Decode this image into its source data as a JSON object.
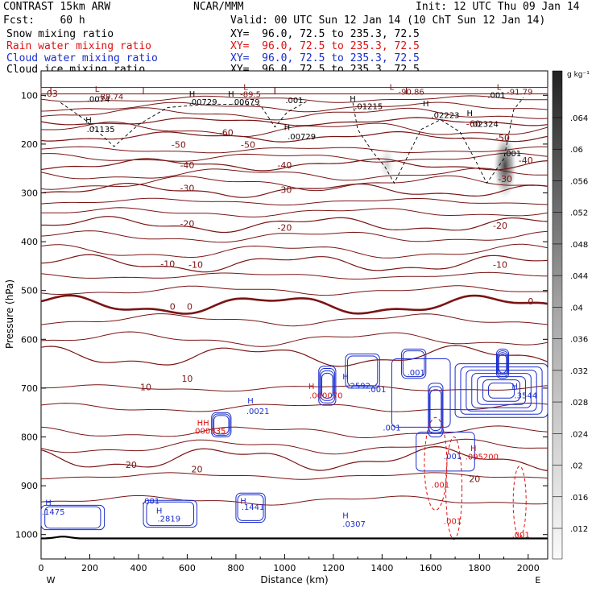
{
  "header": {
    "model": "CONTRAST 15km ARW",
    "org": "NCAR/MMM",
    "init": "Init: 12 UTC Thu 09 Jan 14",
    "fcst": "Fcst:    60 h",
    "valid": "Valid: 00 UTC Sun 12 Jan 14 (10 ChT Sun 12 Jan 14)"
  },
  "fields": [
    {
      "label": "Snow mixing ratio",
      "xy": "XY=  96.0, 72.5 to 235.3, 72.5",
      "color": "#000000"
    },
    {
      "label": "Rain water mixing ratio",
      "xy": "XY=  96.0, 72.5 to 235.3, 72.5",
      "color": "#dd1111"
    },
    {
      "label": "Cloud water mixing ratio",
      "xy": "XY=  96.0, 72.5 to 235.3, 72.5",
      "color": "#1a2ccc"
    },
    {
      "label": "Cloud ice mixing ratio",
      "xy": "XY=  96.0, 72.5 to 235.3, 72.5",
      "color": "#000000"
    }
  ],
  "colors": {
    "temp": "#7a1414",
    "rain": "#dd1111",
    "cloud": "#1a2ccc",
    "ice": "#000000"
  },
  "chart_data": {
    "type": "heatmap",
    "xlabel": "Distance (km)",
    "ylabel": "Pressure (hPa)",
    "xlim": [
      0,
      2080
    ],
    "ylim": [
      1050,
      50
    ],
    "x_ticks": [
      0,
      200,
      400,
      600,
      800,
      1000,
      1200,
      1400,
      1600,
      1800,
      2000
    ],
    "y_ticks": [
      100,
      200,
      300,
      400,
      500,
      600,
      700,
      800,
      900,
      1000
    ],
    "x_end_labels": {
      "left": "W",
      "right": "E"
    },
    "colorbar": {
      "unit": "g kg⁻¹",
      "ticks": [
        ".064",
        ".06",
        ".056",
        ".052",
        ".048",
        ".044",
        ".04",
        ".036",
        ".032",
        ".028",
        ".024",
        ".02",
        ".016",
        ".012"
      ]
    },
    "temperature_contours": [
      {
        "value": "-60",
        "p": 154,
        "label_x": 770
      },
      {
        "value": "-50",
        "p": 185,
        "label_x": 610
      },
      {
        "value": "-40",
        "p": 242,
        "label_x": 1070
      },
      {
        "value": "-30",
        "p": 295,
        "label_x": 1000
      },
      {
        "value": "-20",
        "p": 365,
        "label_x": 1150
      },
      {
        "value": "-10",
        "p": 445,
        "label_x": 600
      },
      {
        "value": "0",
        "p": 530,
        "label_x": 610
      },
      {
        "value": "10",
        "p": 635,
        "label_x": 600
      },
      {
        "value": "20",
        "p": 845,
        "label_x": 640
      }
    ],
    "temperature_labels": [
      {
        "text": ".03",
        "x": 40,
        "p": 96
      },
      {
        "text": "-60",
        "x": 760,
        "p": 176
      },
      {
        "text": "-50",
        "x": 565,
        "p": 201
      },
      {
        "text": "-50",
        "x": 850,
        "p": 201
      },
      {
        "text": "-40",
        "x": 600,
        "p": 243
      },
      {
        "text": "-40",
        "x": 1000,
        "p": 243
      },
      {
        "text": "-30",
        "x": 600,
        "p": 290
      },
      {
        "text": "-30",
        "x": 1000,
        "p": 293
      },
      {
        "text": "-20",
        "x": 600,
        "p": 363
      },
      {
        "text": "-20",
        "x": 1000,
        "p": 371
      },
      {
        "text": "-20",
        "x": 1885,
        "p": 367
      },
      {
        "text": "-10",
        "x": 520,
        "p": 445
      },
      {
        "text": "-10",
        "x": 635,
        "p": 447
      },
      {
        "text": "-10",
        "x": 1885,
        "p": 447
      },
      {
        "text": "0",
        "x": 540,
        "p": 533
      },
      {
        "text": "0",
        "x": 610,
        "p": 533
      },
      {
        "text": "0",
        "x": 2010,
        "p": 522
      },
      {
        "text": "10",
        "x": 430,
        "p": 698
      },
      {
        "text": "10",
        "x": 600,
        "p": 680
      },
      {
        "text": "20",
        "x": 370,
        "p": 857
      },
      {
        "text": "20",
        "x": 640,
        "p": 866
      },
      {
        "text": "20",
        "x": 1780,
        "p": 886
      },
      {
        "text": "-60",
        "x": 1775,
        "p": 158
      },
      {
        "text": "-50",
        "x": 1895,
        "p": 187
      },
      {
        "text": "-40",
        "x": 1990,
        "p": 233
      },
      {
        "text": "-30",
        "x": 1905,
        "p": 271
      }
    ],
    "markers": [
      {
        "text": "L",
        "x": 230,
        "p": 86,
        "color": "#7a1414"
      },
      {
        "text": "L",
        "x": 840,
        "p": 82,
        "color": "#7a1414"
      },
      {
        "text": "L",
        "x": 1440,
        "p": 82,
        "color": "#7a1414"
      },
      {
        "text": "L",
        "x": 1880,
        "p": 82,
        "color": "#7a1414"
      },
      {
        "text": "H",
        "x": 620,
        "p": 96,
        "color": "#000000"
      },
      {
        "text": "H",
        "x": 780,
        "p": 96,
        "color": "#000000"
      },
      {
        "text": "H",
        "x": 1280,
        "p": 106,
        "color": "#000000"
      },
      {
        "text": "H",
        "x": 1580,
        "p": 116,
        "color": "#000000"
      },
      {
        "text": "H",
        "x": 1760,
        "p": 136,
        "color": "#000000"
      },
      {
        "text": "H",
        "x": 195,
        "p": 150,
        "color": "#000000"
      },
      {
        "text": "H",
        "x": 1010,
        "p": 165,
        "color": "#000000"
      },
      {
        "text": "H",
        "x": 1250,
        "p": 675,
        "color": "#1a2ccc"
      },
      {
        "text": "H",
        "x": 1110,
        "p": 695,
        "color": "#dd1111"
      },
      {
        "text": "H",
        "x": 1945,
        "p": 695,
        "color": "#1a2ccc"
      },
      {
        "text": "H",
        "x": 860,
        "p": 725,
        "color": "#1a2ccc"
      },
      {
        "text": "HH",
        "x": 665,
        "p": 770,
        "color": "#dd1111"
      },
      {
        "text": "H",
        "x": 1775,
        "p": 822,
        "color": "#dd1111"
      },
      {
        "text": "H",
        "x": 30,
        "p": 934,
        "color": "#1a2ccc"
      },
      {
        "text": "H",
        "x": 485,
        "p": 950,
        "color": "#1a2ccc"
      },
      {
        "text": "H",
        "x": 830,
        "p": 930,
        "color": "#1a2ccc"
      },
      {
        "text": "H",
        "x": 1250,
        "p": 960,
        "color": "#1a2ccc"
      }
    ],
    "value_labels": [
      {
        "text": ".0074",
        "x": 235,
        "p": 107,
        "color": "#000000"
      },
      {
        "text": "-89.74",
        "x": 285,
        "p": 102,
        "color": "#7a1414"
      },
      {
        "text": "-89.5",
        "x": 860,
        "p": 97,
        "color": "#7a1414"
      },
      {
        "text": ".00729",
        "x": 665,
        "p": 113,
        "color": "#000000"
      },
      {
        "text": ".00679",
        "x": 840,
        "p": 113,
        "color": "#000000"
      },
      {
        "text": ".001",
        "x": 1040,
        "p": 109,
        "color": "#000000"
      },
      {
        "text": "-90.86",
        "x": 1520,
        "p": 92,
        "color": "#7a1414"
      },
      {
        "text": ".001",
        "x": 1870,
        "p": 99,
        "color": "#000000"
      },
      {
        "text": "-91.79",
        "x": 1965,
        "p": 92,
        "color": "#7a1414"
      },
      {
        "text": ".01215",
        "x": 1345,
        "p": 122,
        "color": "#000000"
      },
      {
        "text": ".02223",
        "x": 1660,
        "p": 140,
        "color": "#000000"
      },
      {
        "text": ".02324",
        "x": 1820,
        "p": 158,
        "color": "#000000"
      },
      {
        "text": ".01135",
        "x": 245,
        "p": 169,
        "color": "#000000"
      },
      {
        "text": ".00729",
        "x": 1070,
        "p": 184,
        "color": "#000000"
      },
      {
        "text": ".001",
        "x": 1935,
        "p": 218,
        "color": "#000000"
      },
      {
        "text": ".2592",
        "x": 1305,
        "p": 694,
        "color": "#1a2ccc"
      },
      {
        "text": ".001",
        "x": 1540,
        "p": 667,
        "color": "#1a2ccc"
      },
      {
        "text": ".001",
        "x": 1380,
        "p": 702,
        "color": "#1a2ccc"
      },
      {
        "text": ".000070",
        "x": 1170,
        "p": 714,
        "color": "#dd1111"
      },
      {
        "text": ".3544",
        "x": 1990,
        "p": 714,
        "color": "#1a2ccc"
      },
      {
        "text": ".0021",
        "x": 890,
        "p": 746,
        "color": "#1a2ccc"
      },
      {
        "text": ".000335",
        "x": 690,
        "p": 787,
        "color": "#dd1111"
      },
      {
        "text": ".001",
        "x": 1440,
        "p": 780,
        "color": "#1a2ccc"
      },
      {
        "text": ".001",
        "x": 1690,
        "p": 839,
        "color": "#1a2ccc"
      },
      {
        "text": ".095200",
        "x": 1810,
        "p": 840,
        "color": "#dd1111"
      },
      {
        "text": ".001",
        "x": 1640,
        "p": 897,
        "color": "#dd1111"
      },
      {
        "text": ".001",
        "x": 450,
        "p": 930,
        "color": "#1a2ccc"
      },
      {
        "text": ".1441",
        "x": 870,
        "p": 943,
        "color": "#1a2ccc"
      },
      {
        "text": ".1475",
        "x": 50,
        "p": 953,
        "color": "#1a2ccc"
      },
      {
        "text": ".2819",
        "x": 525,
        "p": 967,
        "color": "#1a2ccc"
      },
      {
        "text": ".0307",
        "x": 1285,
        "p": 977,
        "color": "#1a2ccc"
      },
      {
        "text": ".001",
        "x": 1690,
        "p": 972,
        "color": "#dd1111"
      },
      {
        "text": ".001",
        "x": 1970,
        "p": 1000,
        "color": "#dd1111"
      }
    ]
  }
}
